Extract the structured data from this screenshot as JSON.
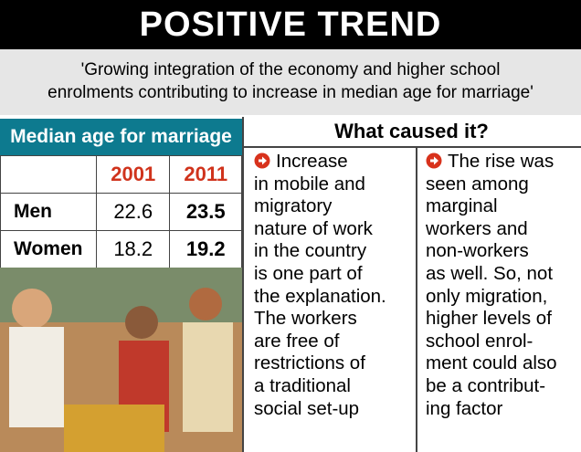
{
  "header": {
    "title": "POSITIVE TREND",
    "subtitle": "'Growing integration of the economy and higher school enrolments contributing to increase in median age for marriage'"
  },
  "table": {
    "title": "Median age for marriage",
    "columns": [
      "2001",
      "2011"
    ],
    "rows": [
      [
        "Men",
        "22.6",
        "23.5"
      ],
      [
        "Women",
        "18.2",
        "19.2"
      ]
    ]
  },
  "causes": {
    "title": "What caused it?",
    "columns": [
      [
        "Increase",
        "in mobile and",
        "migratory",
        "nature of work",
        "in the country",
        "is one part of",
        "the explanation.",
        "The workers",
        "are free of",
        "restrictions of",
        "a traditional",
        "social set-up"
      ],
      [
        "The rise was",
        "seen among",
        "marginal",
        "workers and",
        "non-workers",
        "as well. So, not",
        "only migration,",
        "higher levels of",
        "school enrol-",
        "ment could also",
        "be a contribut-",
        "ing factor"
      ]
    ]
  }
}
